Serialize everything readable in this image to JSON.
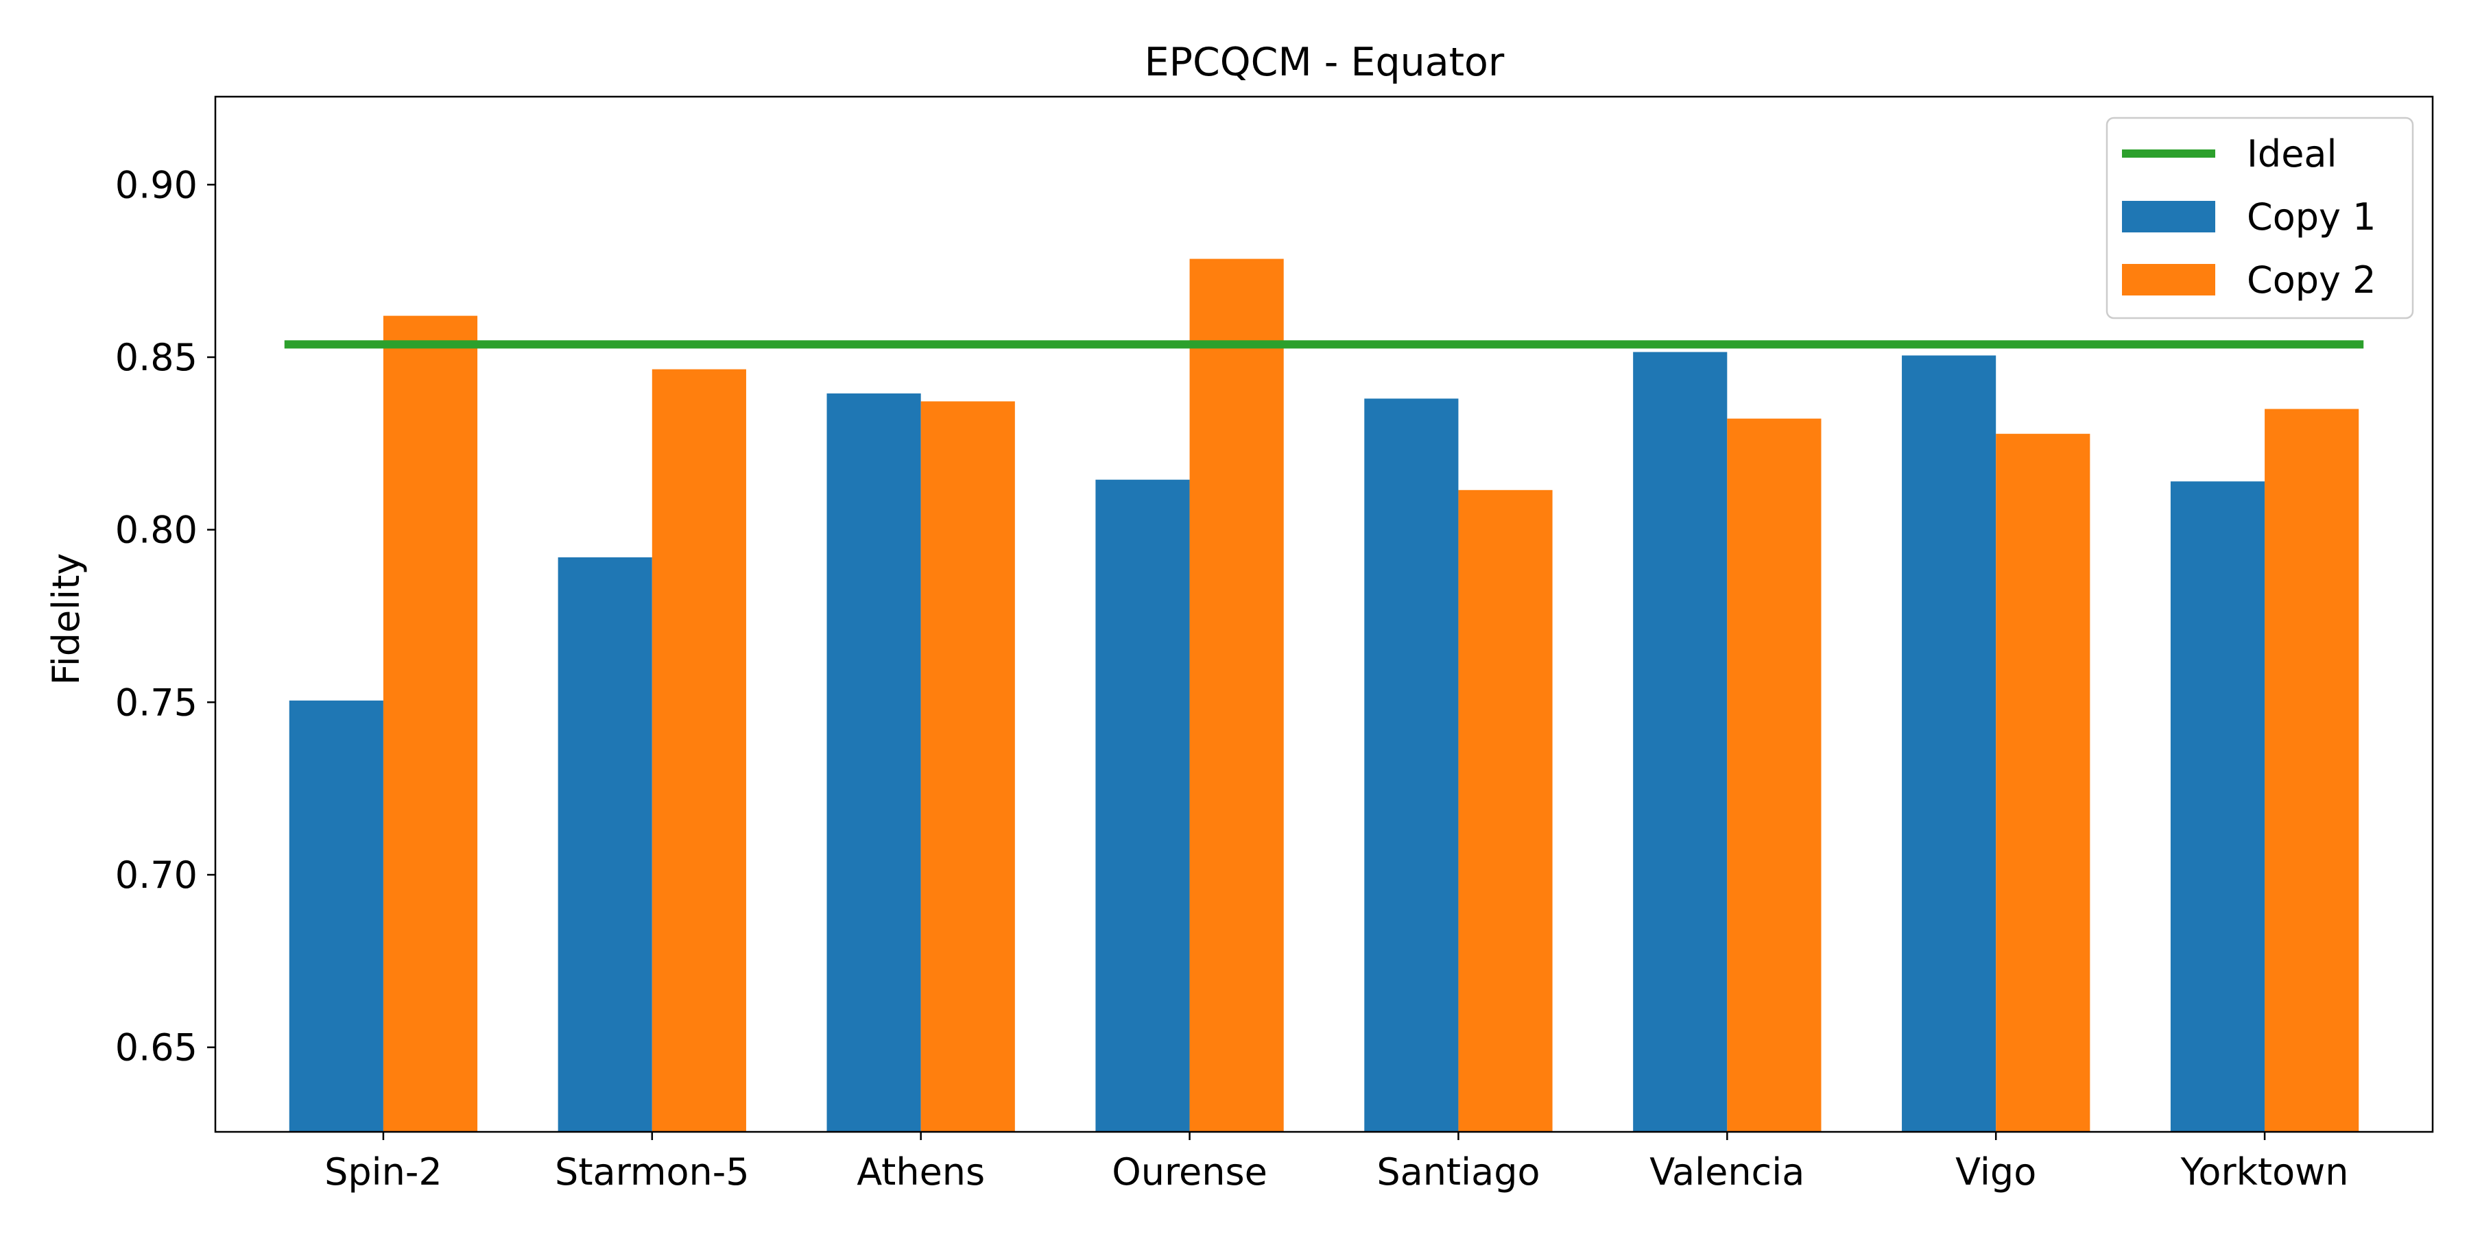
{
  "chart_data": {
    "type": "bar",
    "title": "EPCQCM - Equator",
    "xlabel": "",
    "ylabel": "Fidelity",
    "categories": [
      "Spin-2",
      "Starmon-5",
      "Athens",
      "Ourense",
      "Santiago",
      "Valencia",
      "Vigo",
      "Yorktown"
    ],
    "series": [
      {
        "name": "Copy 1",
        "color": "#1f77b4",
        "values": [
          0.7505,
          0.792,
          0.8395,
          0.8145,
          0.838,
          0.8515,
          0.8505,
          0.814
        ]
      },
      {
        "name": "Copy 2",
        "color": "#ff7f0e",
        "values": [
          0.862,
          0.8465,
          0.8372,
          0.8785,
          0.8115,
          0.8322,
          0.8278,
          0.835
        ]
      }
    ],
    "reference_line": {
      "name": "Ideal",
      "value": 0.8537,
      "color": "#2ca02c"
    },
    "ylim": [
      0.6255,
      0.9255
    ],
    "yticks": [
      "0.65",
      "0.70",
      "0.75",
      "0.80",
      "0.85",
      "0.90"
    ],
    "grid": false,
    "legend_position": "top-right"
  }
}
